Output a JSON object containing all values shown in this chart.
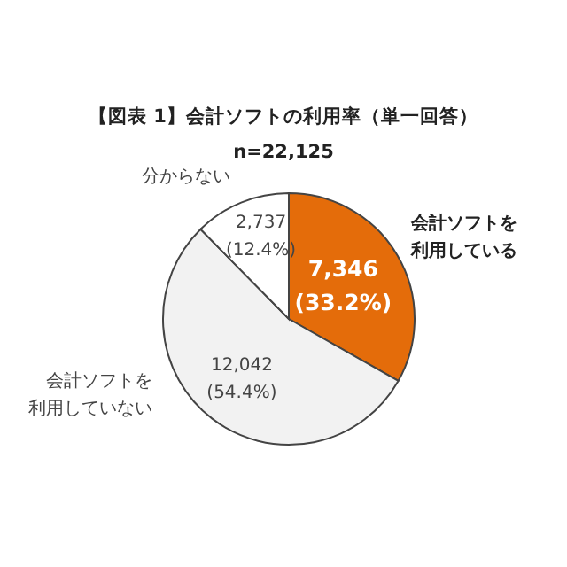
{
  "chart_data": {
    "type": "pie",
    "title": "【図表 1】会計ソフトの利用率（単一回答）",
    "subtitle": "n=22,125",
    "categories": [
      "会計ソフトを利用している",
      "会計ソフトを利用していない",
      "分からない"
    ],
    "values": [
      7346,
      12042,
      2737
    ],
    "colors": [
      "#e46c0a",
      "#f2f2f2",
      "#ffffff"
    ],
    "value_labels": [
      "7,346 (33.2%)",
      "12,042 (54.4%)",
      "2,737 (12.4%)"
    ]
  }
}
